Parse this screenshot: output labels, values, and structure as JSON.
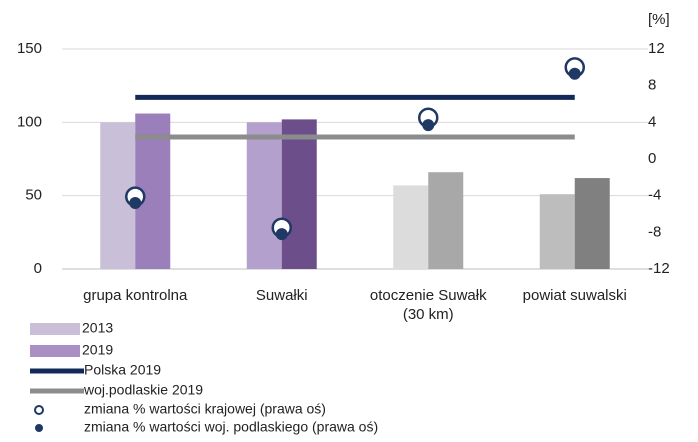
{
  "chart_data": {
    "type": "bar",
    "categories": [
      "grupa kontrolna",
      "Suwałki",
      "otoczenie Suwałk (30 km)",
      "powiat suwalski"
    ],
    "ylim": [
      0,
      150
    ],
    "yticks": [
      0,
      50,
      100,
      150
    ],
    "y2lim": [
      -12,
      12
    ],
    "y2ticks": [
      -12,
      -8,
      -4,
      0,
      4,
      8,
      12
    ],
    "y2_unit": "[%]",
    "series": [
      {
        "name": "2013",
        "kind": "bar",
        "color": "#c9bfd8",
        "colors": [
          "#c9bfd8",
          "#b3a0cc",
          "#dcdcdc",
          "#bdbdbd"
        ],
        "values": [
          100,
          100,
          57,
          51
        ]
      },
      {
        "name": "2019",
        "kind": "bar",
        "color": "#a98fc4",
        "colors": [
          "#9a7fba",
          "#6b4e8a",
          "#a8a8a8",
          "#808080"
        ],
        "values": [
          106,
          102,
          66,
          62
        ]
      },
      {
        "name": "Polska 2019",
        "kind": "line",
        "color": "#14285a",
        "values": [
          117,
          117,
          117,
          117
        ]
      },
      {
        "name": "woj.podlaskie 2019",
        "kind": "line",
        "color": "#8c8c8c",
        "values": [
          90,
          90,
          90,
          90
        ]
      },
      {
        "name": "zmiana % wartości krajowej (prawa oś)",
        "kind": "open-marker",
        "axis": "y2",
        "color": "#1f3864",
        "values": [
          -4.1,
          -7.5,
          4.5,
          10.0
        ]
      },
      {
        "name": "zmiana % wartości woj. podlaskiego (prawa oś)",
        "kind": "filled-marker",
        "axis": "y2",
        "color": "#1f3864",
        "values": [
          -4.8,
          -8.2,
          3.7,
          9.3
        ]
      }
    ]
  }
}
